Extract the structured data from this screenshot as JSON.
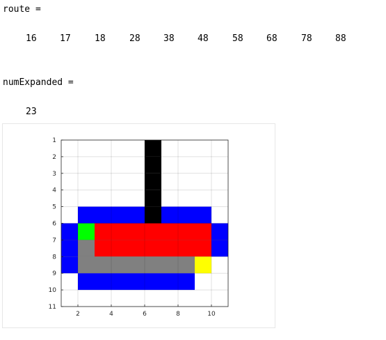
{
  "console": {
    "route_label": "route =",
    "route_values": [
      "16",
      "17",
      "18",
      "28",
      "38",
      "48",
      "58",
      "68",
      "78",
      "88"
    ],
    "expanded_label": "numExpanded =",
    "expanded_value": "23"
  },
  "figure": {
    "y_ticks": [
      "1",
      "2",
      "3",
      "4",
      "5",
      "6",
      "7",
      "8",
      "9",
      "10",
      "11"
    ],
    "x_ticks": [
      "2",
      "4",
      "6",
      "8",
      "10"
    ],
    "colors": {
      "obstacle": "#000000",
      "frontier": "#0000ff",
      "visited": "#ff0000",
      "path": "#808080",
      "start": "#00ff00",
      "goal": "#ffff00",
      "free": "#ffffff"
    },
    "grid": [
      [
        0,
        0,
        0,
        0,
        0,
        1,
        0,
        0,
        0,
        0
      ],
      [
        0,
        0,
        0,
        0,
        0,
        1,
        0,
        0,
        0,
        0
      ],
      [
        0,
        0,
        0,
        0,
        0,
        1,
        0,
        0,
        0,
        0
      ],
      [
        0,
        0,
        0,
        0,
        0,
        1,
        0,
        0,
        0,
        0
      ],
      [
        0,
        2,
        2,
        2,
        2,
        1,
        2,
        2,
        2,
        0
      ],
      [
        2,
        5,
        3,
        3,
        3,
        3,
        3,
        3,
        3,
        2
      ],
      [
        2,
        4,
        3,
        3,
        3,
        3,
        3,
        3,
        3,
        2
      ],
      [
        2,
        4,
        4,
        4,
        4,
        4,
        4,
        4,
        6,
        0
      ],
      [
        0,
        2,
        2,
        2,
        2,
        2,
        2,
        2,
        0,
        0
      ]
    ]
  }
}
